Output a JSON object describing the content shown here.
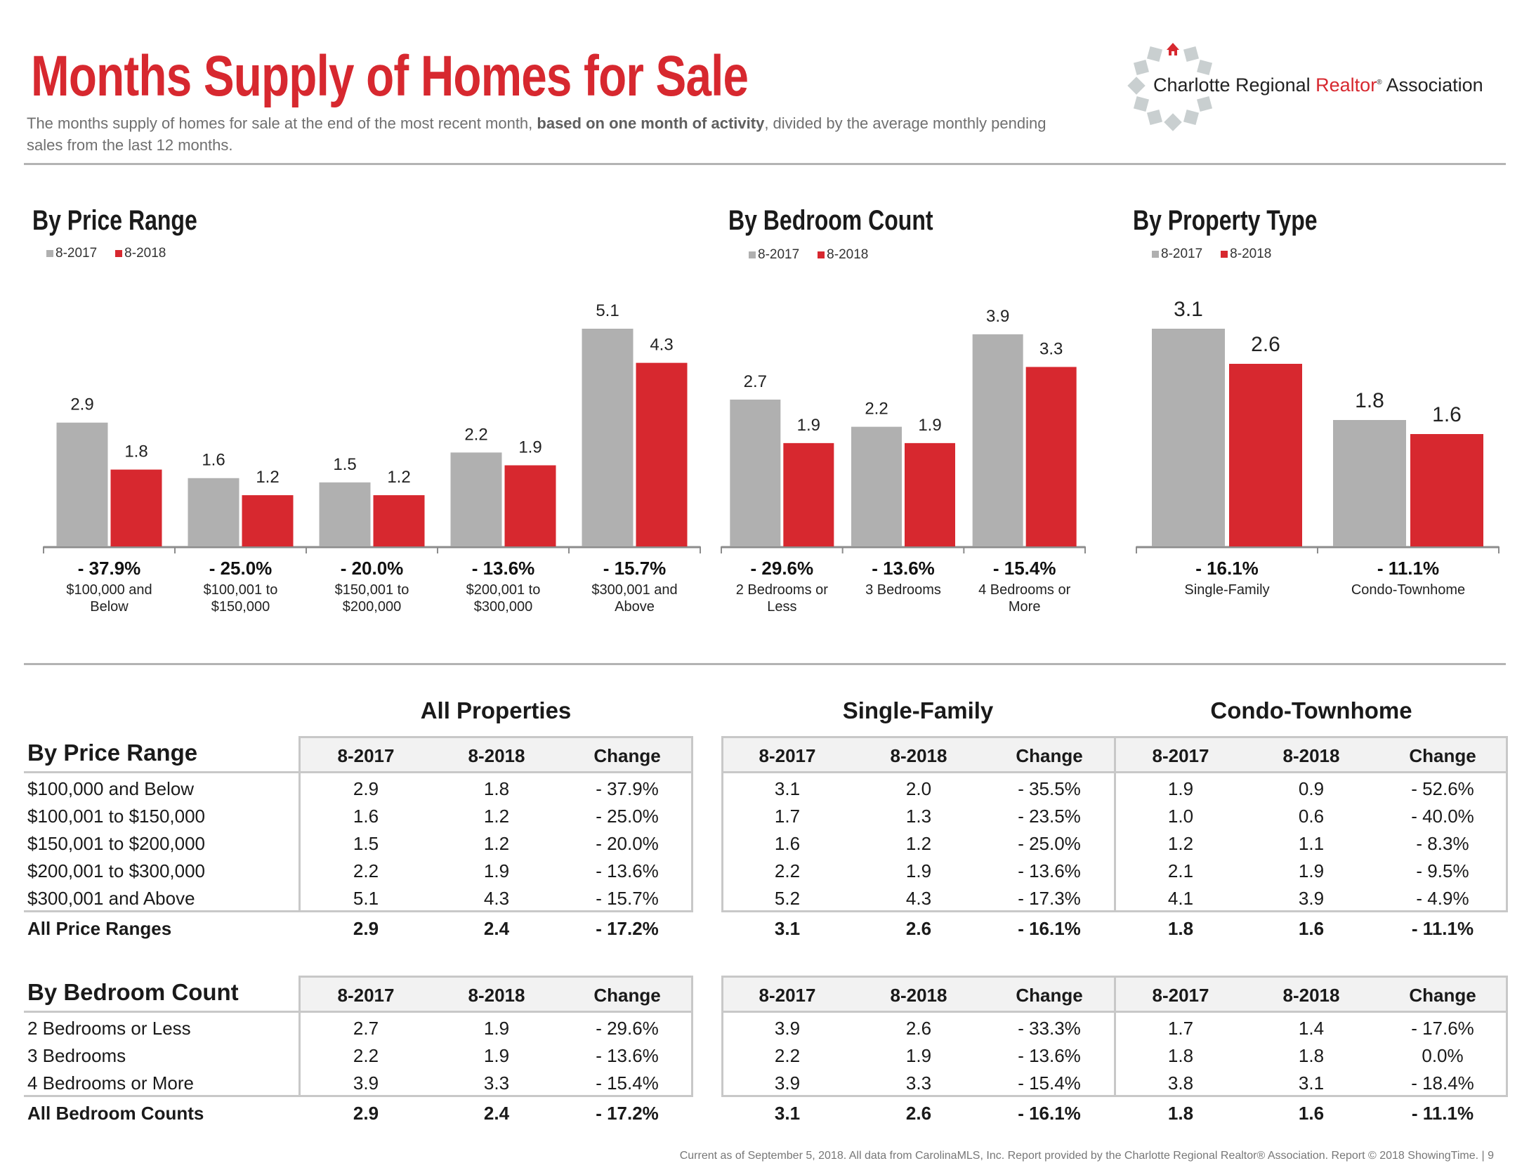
{
  "header": {
    "title": "Months Supply of Homes for Sale",
    "subtitle_pre": "The months supply of homes for sale at the end of the most recent month, ",
    "subtitle_bold": "based on one month of activity",
    "subtitle_post": ", divided by the average monthly pending sales from the last 12 months.",
    "logo": {
      "text_pre": "Charlotte Regional ",
      "text_red": "Realtor",
      "text_reg": "®",
      "text_post": " Association",
      "icon": "house-ring-logo-icon"
    }
  },
  "colors": {
    "brand_red": "#d7282f",
    "bar_2017": "#b0b0b0",
    "bar_2018": "#d7282f"
  },
  "chart_data": [
    {
      "type": "bar",
      "title": "By Price Range",
      "legend": [
        "8-2017",
        "8-2018"
      ],
      "legend_position": "top-left",
      "categories": [
        "$100,000 and Below",
        "$100,001 to $150,000",
        "$150,001 to $200,000",
        "$200,001 to $300,000",
        "$300,001 and Above"
      ],
      "category_lines": [
        [
          "$100,000 and",
          "Below"
        ],
        [
          "$100,001 to",
          "$150,000"
        ],
        [
          "$150,001 to",
          "$200,000"
        ],
        [
          "$200,001 to",
          "$300,000"
        ],
        [
          "$300,001 and",
          "Above"
        ]
      ],
      "series": [
        {
          "name": "8-2017",
          "values": [
            2.9,
            1.6,
            1.5,
            2.2,
            5.1
          ]
        },
        {
          "name": "8-2018",
          "values": [
            1.8,
            1.2,
            1.2,
            1.9,
            4.3
          ]
        }
      ],
      "changes": [
        "- 37.9%",
        "- 25.0%",
        "- 20.0%",
        "- 13.6%",
        "- 15.7%"
      ],
      "xlabel": "",
      "ylabel": "",
      "ylim": [
        0,
        5.5
      ],
      "grid": false
    },
    {
      "type": "bar",
      "title": "By Bedroom Count",
      "legend": [
        "8-2017",
        "8-2018"
      ],
      "legend_position": "top-left",
      "categories": [
        "2 Bedrooms or Less",
        "3 Bedrooms",
        "4 Bedrooms or More"
      ],
      "category_lines": [
        [
          "2 Bedrooms or",
          "Less"
        ],
        [
          "3 Bedrooms"
        ],
        [
          "4 Bedrooms or",
          "More"
        ]
      ],
      "series": [
        {
          "name": "8-2017",
          "values": [
            2.7,
            2.2,
            3.9
          ]
        },
        {
          "name": "8-2018",
          "values": [
            1.9,
            1.9,
            3.3
          ]
        }
      ],
      "changes": [
        "- 29.6%",
        "- 13.6%",
        "- 15.4%"
      ],
      "xlabel": "",
      "ylabel": "",
      "ylim": [
        0,
        4.2
      ],
      "grid": false
    },
    {
      "type": "bar",
      "title": "By Property Type",
      "legend": [
        "8-2017",
        "8-2018"
      ],
      "legend_position": "top-left",
      "categories": [
        "Single-Family",
        "Condo-Townhome"
      ],
      "category_lines": [
        [
          "Single-Family"
        ],
        [
          "Condo-Townhome"
        ]
      ],
      "series": [
        {
          "name": "8-2017",
          "values": [
            3.1,
            1.8
          ]
        },
        {
          "name": "8-2018",
          "values": [
            2.6,
            1.6
          ]
        }
      ],
      "changes": [
        "- 16.1%",
        "- 11.1%"
      ],
      "xlabel": "",
      "ylabel": "",
      "ylim": [
        0,
        3.3
      ],
      "grid": false
    }
  ],
  "tables": {
    "groups": [
      "All Properties",
      "Single-Family",
      "Condo-Townhome"
    ],
    "columns": [
      "8-2017",
      "8-2018",
      "Change"
    ],
    "price": {
      "title": "By Price Range",
      "rows": [
        {
          "label": "$100,000 and Below",
          "all": [
            "2.9",
            "1.8",
            "- 37.9%"
          ],
          "sf": [
            "3.1",
            "2.0",
            "- 35.5%"
          ],
          "ct": [
            "1.9",
            "0.9",
            "- 52.6%"
          ]
        },
        {
          "label": "$100,001 to $150,000",
          "all": [
            "1.6",
            "1.2",
            "- 25.0%"
          ],
          "sf": [
            "1.7",
            "1.3",
            "- 23.5%"
          ],
          "ct": [
            "1.0",
            "0.6",
            "- 40.0%"
          ]
        },
        {
          "label": "$150,001 to $200,000",
          "all": [
            "1.5",
            "1.2",
            "- 20.0%"
          ],
          "sf": [
            "1.6",
            "1.2",
            "- 25.0%"
          ],
          "ct": [
            "1.2",
            "1.1",
            "- 8.3%"
          ]
        },
        {
          "label": "$200,001 to $300,000",
          "all": [
            "2.2",
            "1.9",
            "- 13.6%"
          ],
          "sf": [
            "2.2",
            "1.9",
            "- 13.6%"
          ],
          "ct": [
            "2.1",
            "1.9",
            "- 9.5%"
          ]
        },
        {
          "label": "$300,001 and Above",
          "all": [
            "5.1",
            "4.3",
            "- 15.7%"
          ],
          "sf": [
            "5.2",
            "4.3",
            "- 17.3%"
          ],
          "ct": [
            "4.1",
            "3.9",
            "- 4.9%"
          ]
        }
      ],
      "total": {
        "label": "All Price Ranges",
        "all": [
          "2.9",
          "2.4",
          "- 17.2%"
        ],
        "sf": [
          "3.1",
          "2.6",
          "- 16.1%"
        ],
        "ct": [
          "1.8",
          "1.6",
          "- 11.1%"
        ]
      }
    },
    "bedroom": {
      "title": "By Bedroom Count",
      "rows": [
        {
          "label": "2 Bedrooms or Less",
          "all": [
            "2.7",
            "1.9",
            "- 29.6%"
          ],
          "sf": [
            "3.9",
            "2.6",
            "- 33.3%"
          ],
          "ct": [
            "1.7",
            "1.4",
            "- 17.6%"
          ]
        },
        {
          "label": "3 Bedrooms",
          "all": [
            "2.2",
            "1.9",
            "- 13.6%"
          ],
          "sf": [
            "2.2",
            "1.9",
            "- 13.6%"
          ],
          "ct": [
            "1.8",
            "1.8",
            "0.0%"
          ]
        },
        {
          "label": "4 Bedrooms or More",
          "all": [
            "3.9",
            "3.3",
            "- 15.4%"
          ],
          "sf": [
            "3.9",
            "3.3",
            "- 15.4%"
          ],
          "ct": [
            "3.8",
            "3.1",
            "- 18.4%"
          ]
        }
      ],
      "total": {
        "label": "All Bedroom Counts",
        "all": [
          "2.9",
          "2.4",
          "- 17.2%"
        ],
        "sf": [
          "3.1",
          "2.6",
          "- 16.1%"
        ],
        "ct": [
          "1.8",
          "1.6",
          "- 11.1%"
        ]
      }
    }
  },
  "footer": "Current as of September 5, 2018. All data from CarolinaMLS, Inc. Report provided by the Charlotte Regional Realtor® Association. Report © 2018 ShowingTime.  |  9"
}
